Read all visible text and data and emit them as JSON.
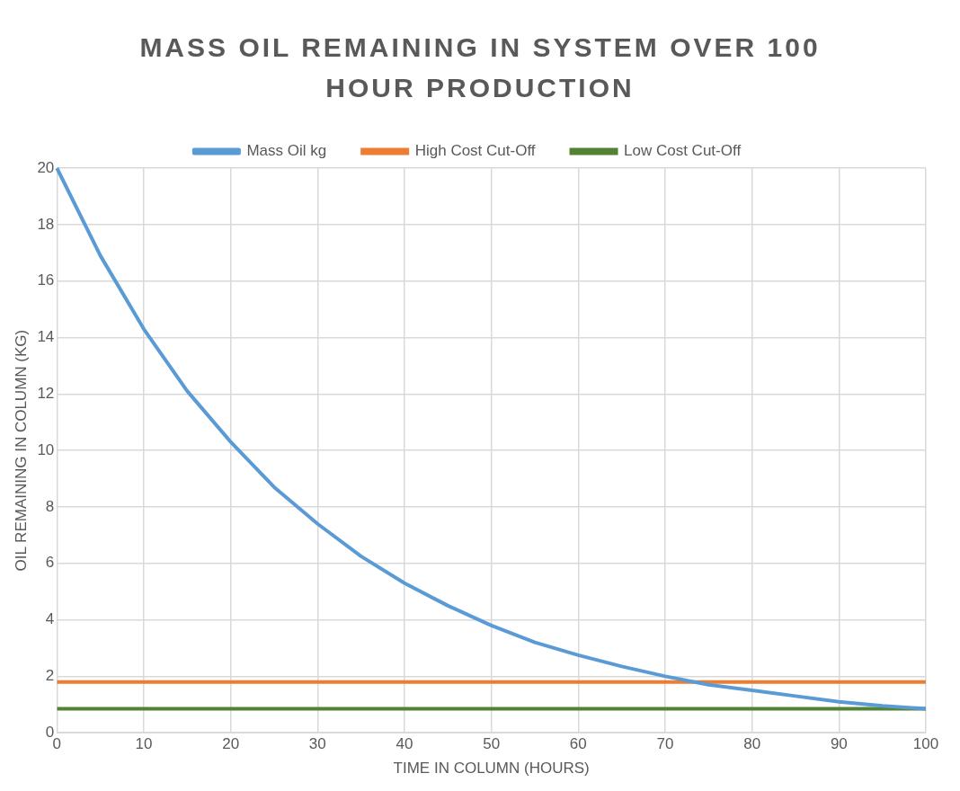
{
  "chart_data": {
    "type": "line",
    "title": "MASS OIL REMAINING IN SYSTEM OVER 100  HOUR PRODUCTION",
    "xlabel": "TIME IN COLUMN (HOURS)",
    "ylabel": "OIL REMAINING IN COLUMN (KG)",
    "x": [
      0,
      5,
      10,
      15,
      20,
      25,
      30,
      35,
      40,
      45,
      50,
      55,
      60,
      65,
      70,
      75,
      80,
      85,
      90,
      95,
      100
    ],
    "series": [
      {
        "name": "Mass Oil kg",
        "color": "#5b9bd5",
        "values": [
          20,
          16.9,
          14.3,
          12.1,
          10.3,
          8.7,
          7.4,
          6.25,
          5.3,
          4.5,
          3.8,
          3.2,
          2.75,
          2.35,
          2.0,
          1.7,
          1.5,
          1.3,
          1.1,
          0.95,
          0.85
        ]
      }
    ],
    "ref_lines": [
      {
        "axis": "y",
        "value": 1.8,
        "label": "High Cost Cut-Off",
        "color": "#ed7d31"
      },
      {
        "axis": "y",
        "value": 0.85,
        "label": "Low Cost Cut-Off",
        "color": "#548235"
      }
    ],
    "xlim": [
      0,
      100
    ],
    "xticks": [
      0,
      10,
      20,
      30,
      40,
      50,
      60,
      70,
      80,
      90,
      100
    ],
    "ylim": [
      0,
      20
    ],
    "yticks": [
      0,
      2,
      4,
      6,
      8,
      10,
      12,
      14,
      16,
      18,
      20
    ],
    "grid": true,
    "legend": "top",
    "marker": "none",
    "line_style": "solid"
  }
}
